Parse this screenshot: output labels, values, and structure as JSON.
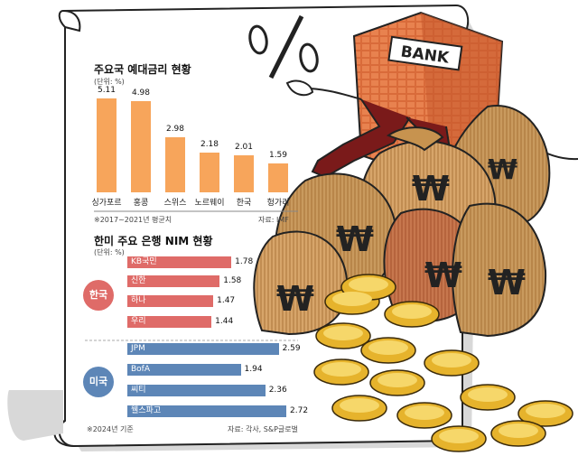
{
  "chart_data": [
    {
      "type": "bar",
      "title": "주요국 예대금리 현황",
      "unit": "(단위: %)",
      "categories": [
        "싱가포르",
        "홍콩",
        "스위스",
        "노르웨이",
        "한국",
        "헝가리"
      ],
      "values": [
        5.11,
        4.98,
        2.98,
        2.18,
        2.01,
        1.59
      ],
      "value_labels": [
        "5.11",
        "4.98",
        "2.98",
        "2.18",
        "2.01",
        "1.59"
      ],
      "ylim": [
        0,
        5.5
      ],
      "note": "※2017~2021년 평균치",
      "source": "자료: IMF",
      "color": "#f7a55b"
    },
    {
      "type": "bar",
      "orientation": "horizontal",
      "title": "한미 주요 은행 NIM 현황",
      "unit": "(단위: %)",
      "groups": [
        {
          "name": "한국",
          "color": "#df6b68",
          "categories": [
            "KB국민",
            "신한",
            "하나",
            "우리"
          ],
          "values": [
            1.78,
            1.58,
            1.47,
            1.44
          ],
          "value_labels": [
            "1.78",
            "1.58",
            "1.47",
            "1.44"
          ]
        },
        {
          "name": "미국",
          "color": "#5d86b7",
          "categories": [
            "JPM",
            "BofA",
            "씨티",
            "웰스파고"
          ],
          "values": [
            2.59,
            1.94,
            2.36,
            2.72
          ],
          "value_labels": [
            "2.59",
            "1.94",
            "2.36",
            "2.72"
          ]
        }
      ],
      "xlim": [
        0,
        3
      ],
      "note": "※2024년 기준",
      "source": "자료: 각사, S&P글로벌"
    }
  ],
  "illustration": {
    "bank_sign": "BANK",
    "percent_glyph": "%",
    "money_symbol": "₩"
  }
}
